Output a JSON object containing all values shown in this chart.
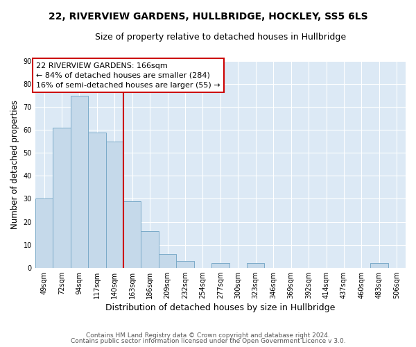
{
  "title": "22, RIVERVIEW GARDENS, HULLBRIDGE, HOCKLEY, SS5 6LS",
  "subtitle": "Size of property relative to detached houses in Hullbridge",
  "xlabel": "Distribution of detached houses by size in Hullbridge",
  "ylabel": "Number of detached properties",
  "bin_labels": [
    "49sqm",
    "72sqm",
    "94sqm",
    "117sqm",
    "140sqm",
    "163sqm",
    "186sqm",
    "209sqm",
    "232sqm",
    "254sqm",
    "277sqm",
    "300sqm",
    "323sqm",
    "346sqm",
    "369sqm",
    "392sqm",
    "414sqm",
    "437sqm",
    "460sqm",
    "483sqm",
    "506sqm"
  ],
  "bar_heights": [
    30,
    61,
    75,
    59,
    55,
    29,
    16,
    6,
    3,
    0,
    2,
    0,
    2,
    0,
    0,
    0,
    0,
    0,
    0,
    2,
    0
  ],
  "bar_color": "#c5d9ea",
  "bar_edge_color": "#7aaac8",
  "property_line_idx": 5,
  "property_line_color": "#cc0000",
  "ylim": [
    0,
    90
  ],
  "yticks": [
    0,
    10,
    20,
    30,
    40,
    50,
    60,
    70,
    80,
    90
  ],
  "annotation_title": "22 RIVERVIEW GARDENS: 166sqm",
  "annotation_line1": "← 84% of detached houses are smaller (284)",
  "annotation_line2": "16% of semi-detached houses are larger (55) →",
  "annotation_box_color": "#ffffff",
  "annotation_box_edge": "#cc0000",
  "footer1": "Contains HM Land Registry data © Crown copyright and database right 2024.",
  "footer2": "Contains public sector information licensed under the Open Government Licence v 3.0.",
  "title_fontsize": 10,
  "subtitle_fontsize": 9,
  "xlabel_fontsize": 9,
  "ylabel_fontsize": 8.5,
  "tick_fontsize": 7,
  "footer_fontsize": 6.5,
  "annotation_fontsize": 8,
  "bg_color": "#dce9f5",
  "grid_color": "#ffffff"
}
